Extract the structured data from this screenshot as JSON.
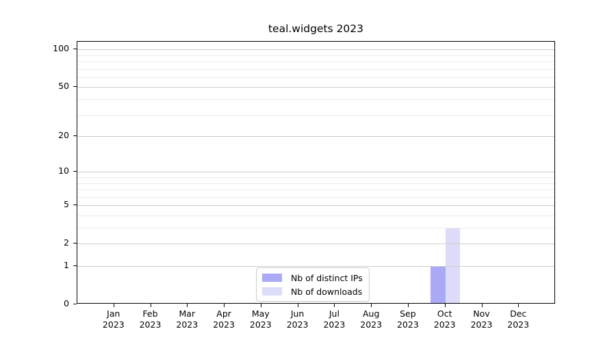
{
  "chart_data": {
    "type": "bar",
    "title": "teal.widgets 2023",
    "categories": [
      "Jan",
      "Feb",
      "Mar",
      "Apr",
      "May",
      "Jun",
      "Jul",
      "Aug",
      "Sep",
      "Oct",
      "Nov",
      "Dec"
    ],
    "x_label_year": "2023",
    "series": [
      {
        "name": "Nb of distinct IPs",
        "color": "#a9a9f6",
        "values": [
          0,
          0,
          0,
          0,
          0,
          0,
          0,
          0,
          0,
          1,
          0,
          0
        ]
      },
      {
        "name": "Nb of downloads",
        "color": "#dcdcf9",
        "values": [
          0,
          0,
          0,
          0,
          0,
          0,
          0,
          0,
          0,
          3,
          0,
          0
        ]
      }
    ],
    "y_axis": {
      "scale": "log1p",
      "major_ticks": [
        0,
        1,
        2,
        5,
        10,
        20,
        50,
        100
      ],
      "minor_gridline_values": [
        3,
        4,
        6,
        7,
        8,
        9,
        30,
        40,
        60,
        70,
        80,
        90
      ],
      "max_log10_1p": 2.0645
    },
    "grid": {
      "major_color": "#cccccc",
      "minor_color": "#ececec",
      "grid_above_bars": true
    },
    "legend": {
      "position": "lower center"
    },
    "colors": {
      "spine": "#000000",
      "text": "#000000",
      "background": "#ffffff"
    }
  }
}
